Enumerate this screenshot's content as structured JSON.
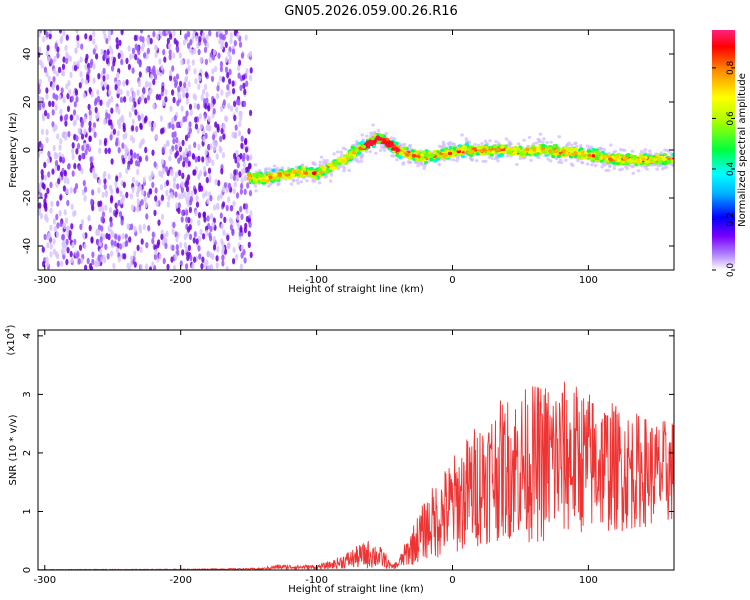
{
  "title": "GN05.2026.059.00.26.R16",
  "colors": {
    "snr_line": "#ee3333",
    "background_dot": "#6a00d8",
    "axis": "#000000"
  },
  "chart_data": [
    {
      "id": "spectrogram",
      "type": "heatmap",
      "xlabel": "Height of straight line (km)",
      "ylabel": "Frequency (Hz)",
      "xlim": [
        -305,
        163
      ],
      "ylim": [
        -50,
        50
      ],
      "x_ticks": [
        -300,
        -200,
        -100,
        0,
        100
      ],
      "x_tick_labels": [
        "-300",
        "-200",
        "-100",
        "0",
        "100"
      ],
      "y_ticks": [
        -40,
        -20,
        0,
        20,
        40
      ],
      "y_tick_labels": [
        "-40",
        "-20",
        "0",
        "20",
        "40"
      ],
      "colorbar": {
        "label": "Normalized spectral amplitude",
        "range": [
          0,
          0.95
        ],
        "ticks": [
          0,
          0.2,
          0.4,
          0.6,
          0.8
        ],
        "tick_labels": [
          "0.0",
          "0.2",
          "0.4",
          "0.6",
          "0.8"
        ],
        "colormap": "rainbow"
      },
      "noise_region_x": [
        -305,
        -148
      ],
      "ridge_x": [
        -150,
        -140,
        -130,
        -120,
        -110,
        -100,
        -90,
        -80,
        -70,
        -60,
        -55,
        -50,
        -40,
        -30,
        -20,
        -10,
        0,
        10,
        20,
        30,
        40,
        50,
        60,
        70,
        80,
        90,
        100,
        110,
        120,
        130,
        140,
        150,
        160
      ],
      "ridge_freq": [
        -11,
        -12,
        -11,
        -10,
        -9,
        -10,
        -7,
        -4,
        0,
        3,
        5,
        4,
        0,
        -2,
        -3,
        -2,
        -1,
        0,
        0,
        0,
        0,
        -1,
        0,
        0,
        -1,
        -1,
        -2,
        -3,
        -4,
        -4,
        -4,
        -4,
        -4
      ]
    },
    {
      "id": "snr",
      "type": "line",
      "xlabel": "Height of straight line (km)",
      "ylabel": "SNR (10 * v/v)",
      "multiplier": "(x10",
      "multiplier_exp": "4",
      "xlim": [
        -305,
        163
      ],
      "ylim": [
        0,
        4.1
      ],
      "x_ticks": [
        -300,
        -200,
        -100,
        0,
        100
      ],
      "x_tick_labels": [
        "-300",
        "-200",
        "-100",
        "0",
        "100"
      ],
      "y_ticks": [
        0,
        1,
        2,
        3,
        4
      ],
      "y_tick_labels": [
        "0",
        "1",
        "2",
        "3",
        "4"
      ],
      "envelope_x": [
        -305,
        -200,
        -140,
        -130,
        -120,
        -100,
        -90,
        -80,
        -70,
        -60,
        -50,
        -45,
        -40,
        -30,
        -20,
        -10,
        0,
        10,
        20,
        30,
        40,
        50,
        60,
        70,
        80,
        90,
        100,
        110,
        120,
        130,
        140,
        150,
        163
      ],
      "envelope_mean": [
        0.005,
        0.01,
        0.02,
        0.05,
        0.05,
        0.05,
        0.08,
        0.15,
        0.22,
        0.28,
        0.18,
        0.05,
        0.1,
        0.4,
        0.7,
        0.9,
        1.1,
        1.3,
        1.5,
        1.65,
        1.75,
        1.8,
        1.82,
        1.85,
        1.9,
        1.9,
        1.85,
        1.8,
        1.75,
        1.7,
        1.7,
        1.65,
        1.7
      ],
      "envelope_spread": [
        0.003,
        0.005,
        0.01,
        0.03,
        0.03,
        0.03,
        0.05,
        0.1,
        0.15,
        0.2,
        0.12,
        0.03,
        0.06,
        0.25,
        0.4,
        0.55,
        0.65,
        0.75,
        0.85,
        0.9,
        0.95,
        1.0,
        1.05,
        1.1,
        1.05,
        1.0,
        0.95,
        0.9,
        0.85,
        0.8,
        0.75,
        0.7,
        0.7
      ]
    }
  ]
}
